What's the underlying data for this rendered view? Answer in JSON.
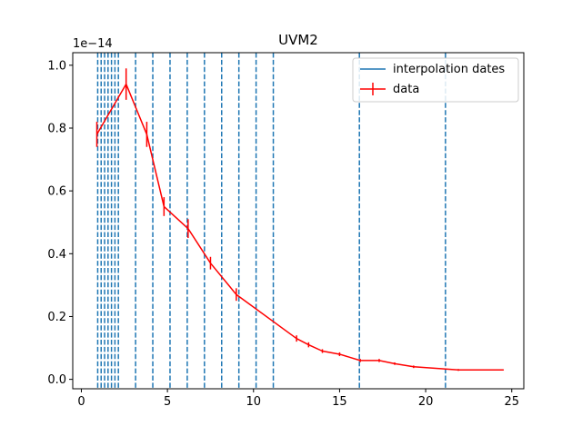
{
  "chart_data": {
    "type": "line",
    "title": "UVM2",
    "xlabel": "",
    "ylabel": "",
    "y_offset_label": "1e−14",
    "xlim": [
      -0.5,
      25.7
    ],
    "ylim": [
      -0.03,
      1.04
    ],
    "x_ticks": [
      0,
      5,
      10,
      15,
      20,
      25
    ],
    "x_tick_labels": [
      "0",
      "5",
      "10",
      "15",
      "20",
      "25"
    ],
    "y_ticks": [
      0.0,
      0.2,
      0.4,
      0.6,
      0.8,
      1.0
    ],
    "y_tick_labels": [
      "0.0",
      "0.2",
      "0.4",
      "0.6",
      "0.8",
      "1.0"
    ],
    "grid": false,
    "legend_position": "top-right",
    "interpolation_dates": {
      "name": "interpolation dates",
      "color": "#1f77b4",
      "style": "dashed",
      "x": [
        0.95,
        1.15,
        1.35,
        1.55,
        1.75,
        1.95,
        2.15,
        3.15,
        4.15,
        5.15,
        6.15,
        7.15,
        8.15,
        9.15,
        10.15,
        11.15,
        16.15,
        21.15
      ]
    },
    "series": [
      {
        "name": "data",
        "color": "#ff0000",
        "x": [
          0.9,
          2.6,
          3.8,
          4.8,
          6.2,
          7.5,
          9.0,
          12.5,
          13.2,
          14.0,
          15.0,
          16.2,
          17.3,
          18.2,
          19.3,
          21.9,
          24.5
        ],
        "y": [
          0.78,
          0.94,
          0.78,
          0.55,
          0.48,
          0.37,
          0.27,
          0.13,
          0.11,
          0.09,
          0.08,
          0.06,
          0.06,
          0.05,
          0.04,
          0.03,
          0.03
        ],
        "yerr": [
          0.04,
          0.05,
          0.04,
          0.03,
          0.03,
          0.02,
          0.02,
          0.01,
          0.008,
          0.006,
          0.006,
          0.005,
          0.005,
          0.004,
          0.004,
          0.003,
          0.002
        ]
      }
    ]
  }
}
